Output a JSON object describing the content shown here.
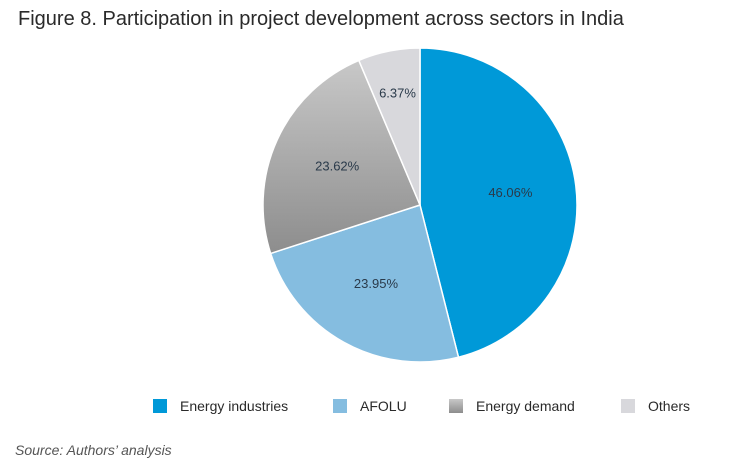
{
  "title": "Figure 8. Participation in project development across sectors in India",
  "source": "Source: Authors’ analysis",
  "chart_data": {
    "type": "pie",
    "start_angle_deg": 0,
    "direction": "clockwise",
    "slices": [
      {
        "label": "Energy industries",
        "value": 46.06,
        "display": "46.06%",
        "color": "#0099d8"
      },
      {
        "label": "AFOLU",
        "value": 23.95,
        "display": "23.95%",
        "color": "#85bde0"
      },
      {
        "label": "Energy demand",
        "value": 23.62,
        "display": "23.62%",
        "color": "#a8a8a8",
        "gradient": [
          "#c8c8c8",
          "#8d8d8d"
        ]
      },
      {
        "label": "Others",
        "value": 6.37,
        "display": "6.37%",
        "color": "#d8d8dc"
      }
    ],
    "legend_position": "bottom"
  }
}
